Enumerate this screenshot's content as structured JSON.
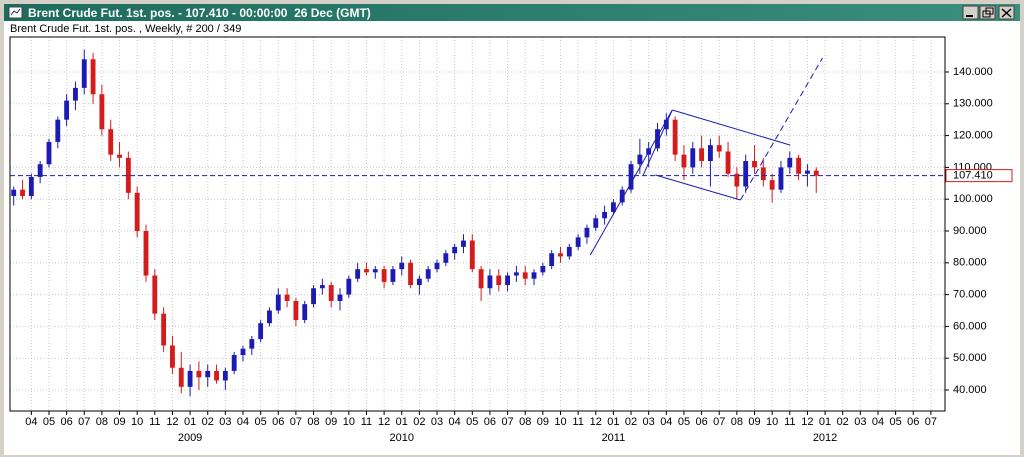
{
  "window_title": "Brent Crude Fut. 1st. pos. - 107.410 - 00:00:00  26 Dec (GMT)",
  "chart_data": {
    "type": "candlestick",
    "subtitle": "Brent Crude Fut. 1st. pos. , Weekly, # 200 / 349",
    "up_color": "#1c1cb4",
    "down_color": "#d41c1c",
    "x": [
      2,
      2.5,
      3,
      3.5,
      4,
      4.5,
      5,
      5.5,
      6,
      6.5,
      7,
      7.5,
      8,
      8.5,
      9,
      9.5,
      10,
      10.5,
      11,
      11.5,
      12,
      12.5,
      13,
      13.5,
      14,
      14.5,
      15,
      15.5,
      16,
      16.5,
      17,
      17.5,
      18,
      18.5,
      19,
      19.5,
      20,
      20.5,
      21,
      21.5,
      22,
      22.5,
      23,
      23.5,
      24,
      24.5,
      25,
      25.5,
      26,
      26.5,
      27,
      27.5,
      28,
      28.5,
      29,
      29.5,
      30,
      30.5,
      31,
      31.5,
      32,
      32.5,
      33,
      33.5,
      34,
      34.5,
      35,
      35.5,
      36,
      36.5,
      37,
      37.5,
      38,
      38.5,
      39,
      39.5,
      40,
      40.5,
      41,
      41.5,
      42,
      42.5,
      43,
      43.5,
      44,
      44.5,
      45,
      45.5,
      46,
      46.5,
      47,
      47.5
    ],
    "open": [
      101,
      103,
      101,
      107,
      111,
      118,
      125,
      131,
      135,
      144,
      133,
      122,
      114,
      113,
      102,
      90,
      76,
      64,
      54,
      47,
      41,
      46,
      44,
      46,
      43,
      46,
      51,
      53,
      56,
      61,
      65,
      70,
      68,
      62,
      67,
      72,
      73,
      68,
      70,
      75,
      78,
      77,
      78,
      74,
      78,
      80,
      73,
      75,
      78,
      80,
      83,
      85,
      87,
      78,
      72,
      76,
      73,
      76,
      77,
      75,
      77,
      79,
      83,
      82,
      85,
      88,
      91,
      94,
      96,
      99,
      103,
      111,
      114,
      116,
      122,
      125,
      114,
      110,
      116,
      112,
      117,
      115,
      108,
      104,
      112,
      110,
      106,
      103,
      110,
      113,
      108,
      109
    ],
    "high": [
      104,
      106,
      108,
      112,
      119,
      126,
      133,
      137,
      147,
      146,
      136,
      125,
      118,
      115,
      104,
      92,
      78,
      66,
      57,
      52,
      48,
      49,
      48,
      48,
      47,
      52,
      54,
      57,
      62,
      66,
      72,
      72,
      69,
      68,
      73,
      75,
      74,
      72,
      76,
      80,
      80,
      79,
      79,
      79,
      82,
      81,
      76,
      79,
      81,
      84,
      86,
      89,
      89,
      79,
      78,
      78,
      77,
      79,
      79,
      78,
      80,
      84,
      85,
      86,
      89,
      92,
      95,
      98,
      100,
      104,
      112,
      119,
      118,
      124,
      127,
      126,
      117,
      118,
      120,
      119,
      120,
      118,
      110,
      114,
      117,
      113,
      108,
      112,
      115,
      114,
      111,
      110
    ],
    "low": [
      98,
      100,
      100,
      105,
      110,
      116,
      123,
      128,
      133,
      130,
      120,
      112,
      110,
      100,
      88,
      74,
      62,
      52,
      45,
      39,
      38,
      40,
      41,
      42,
      40,
      45,
      49,
      51,
      55,
      60,
      64,
      66,
      60,
      61,
      66,
      70,
      66,
      65,
      69,
      74,
      76,
      75,
      72,
      73,
      76,
      72,
      70,
      74,
      77,
      79,
      81,
      83,
      77,
      68,
      70,
      71,
      71,
      74,
      73,
      73,
      76,
      78,
      80,
      81,
      84,
      86,
      90,
      92,
      95,
      98,
      102,
      108,
      110,
      115,
      120,
      112,
      106,
      108,
      110,
      104,
      113,
      107,
      100,
      102,
      108,
      104,
      99,
      102,
      108,
      106,
      104,
      102
    ],
    "close": [
      103,
      101,
      107,
      111,
      118,
      125,
      131,
      135,
      144,
      133,
      122,
      114,
      113,
      102,
      90,
      76,
      64,
      54,
      47,
      41,
      46,
      44,
      46,
      43,
      46,
      51,
      53,
      56,
      61,
      65,
      70,
      68,
      62,
      67,
      72,
      73,
      68,
      70,
      75,
      78,
      77,
      78,
      74,
      78,
      80,
      73,
      75,
      78,
      80,
      83,
      85,
      87,
      78,
      72,
      76,
      73,
      76,
      77,
      75,
      77,
      79,
      83,
      82,
      85,
      88,
      91,
      94,
      96,
      99,
      103,
      111,
      114,
      116,
      122,
      125,
      114,
      110,
      116,
      112,
      117,
      115,
      108,
      104,
      112,
      110,
      106,
      103,
      110,
      113,
      108,
      109,
      107.41
    ],
    "xlim": [
      1.79,
      54.8
    ],
    "ylim": [
      33.4,
      151
    ],
    "yticks": [
      {
        "value": 40,
        "label": "40.000"
      },
      {
        "value": 50,
        "label": "50.000"
      },
      {
        "value": 60,
        "label": "60.000"
      },
      {
        "value": 70,
        "label": "70.000"
      },
      {
        "value": 80,
        "label": "80.000"
      },
      {
        "value": 90,
        "label": "90.000"
      },
      {
        "value": 100,
        "label": "100.000"
      },
      {
        "value": 110,
        "label": "110.000"
      },
      {
        "value": 120,
        "label": "120.000"
      },
      {
        "value": 130,
        "label": "130.000"
      },
      {
        "value": 140,
        "label": "140.000"
      }
    ],
    "xticks": [
      {
        "value": 3,
        "label": "04"
      },
      {
        "value": 4,
        "label": "05"
      },
      {
        "value": 5,
        "label": "06"
      },
      {
        "value": 6,
        "label": "07"
      },
      {
        "value": 7,
        "label": "08"
      },
      {
        "value": 8,
        "label": "09"
      },
      {
        "value": 9,
        "label": "10"
      },
      {
        "value": 10,
        "label": "11"
      },
      {
        "value": 11,
        "label": "12"
      },
      {
        "value": 12,
        "label": "01"
      },
      {
        "value": 13,
        "label": "02"
      },
      {
        "value": 14,
        "label": "03"
      },
      {
        "value": 15,
        "label": "04"
      },
      {
        "value": 16,
        "label": "05"
      },
      {
        "value": 17,
        "label": "06"
      },
      {
        "value": 18,
        "label": "07"
      },
      {
        "value": 19,
        "label": "08"
      },
      {
        "value": 20,
        "label": "09"
      },
      {
        "value": 21,
        "label": "10"
      },
      {
        "value": 22,
        "label": "11"
      },
      {
        "value": 23,
        "label": "12"
      },
      {
        "value": 24,
        "label": "01"
      },
      {
        "value": 25,
        "label": "02"
      },
      {
        "value": 26,
        "label": "03"
      },
      {
        "value": 27,
        "label": "04"
      },
      {
        "value": 28,
        "label": "05"
      },
      {
        "value": 29,
        "label": "06"
      },
      {
        "value": 30,
        "label": "07"
      },
      {
        "value": 31,
        "label": "08"
      },
      {
        "value": 32,
        "label": "09"
      },
      {
        "value": 33,
        "label": "10"
      },
      {
        "value": 34,
        "label": "11"
      },
      {
        "value": 35,
        "label": "12"
      },
      {
        "value": 36,
        "label": "01"
      },
      {
        "value": 37,
        "label": "02"
      },
      {
        "value": 38,
        "label": "03"
      },
      {
        "value": 39,
        "label": "04"
      },
      {
        "value": 40,
        "label": "05"
      },
      {
        "value": 41,
        "label": "06"
      },
      {
        "value": 42,
        "label": "07"
      },
      {
        "value": 43,
        "label": "08"
      },
      {
        "value": 44,
        "label": "09"
      },
      {
        "value": 45,
        "label": "10"
      },
      {
        "value": 46,
        "label": "11"
      },
      {
        "value": 47,
        "label": "12"
      },
      {
        "value": 48,
        "label": "01"
      },
      {
        "value": 49,
        "label": "02"
      },
      {
        "value": 50,
        "label": "03"
      },
      {
        "value": 51,
        "label": "04"
      },
      {
        "value": 52,
        "label": "05"
      },
      {
        "value": 53,
        "label": "06"
      },
      {
        "value": 54,
        "label": "07"
      }
    ],
    "year_labels": [
      {
        "value": 12,
        "label": "2009"
      },
      {
        "value": 24,
        "label": "2010"
      },
      {
        "value": 36,
        "label": "2011"
      },
      {
        "value": 48,
        "label": "2012"
      }
    ],
    "grid": true,
    "price_line": {
      "value": 107.41,
      "label": "107.410",
      "color": "#1c1cb4",
      "box_color": "#d41c1c"
    },
    "trendlines": [
      {
        "dashed": false,
        "points": [
          [
            34.69,
            82.45
          ],
          [
            39.34,
            128.05
          ]
        ]
      },
      {
        "dashed": false,
        "points": [
          [
            37.69,
            107.6
          ],
          [
            39.34,
            128.05
          ]
        ]
      },
      {
        "dashed": false,
        "points": [
          [
            39.34,
            128.05
          ],
          [
            46.03,
            117.0
          ]
        ]
      },
      {
        "dashed": false,
        "points": [
          [
            38.38,
            107.6
          ],
          [
            43.2,
            99.75
          ]
        ]
      },
      {
        "dashed": true,
        "points": [
          [
            43.2,
            99.75
          ],
          [
            47.85,
            144.4
          ]
        ]
      }
    ],
    "trend_color": "#1c1cb4"
  }
}
